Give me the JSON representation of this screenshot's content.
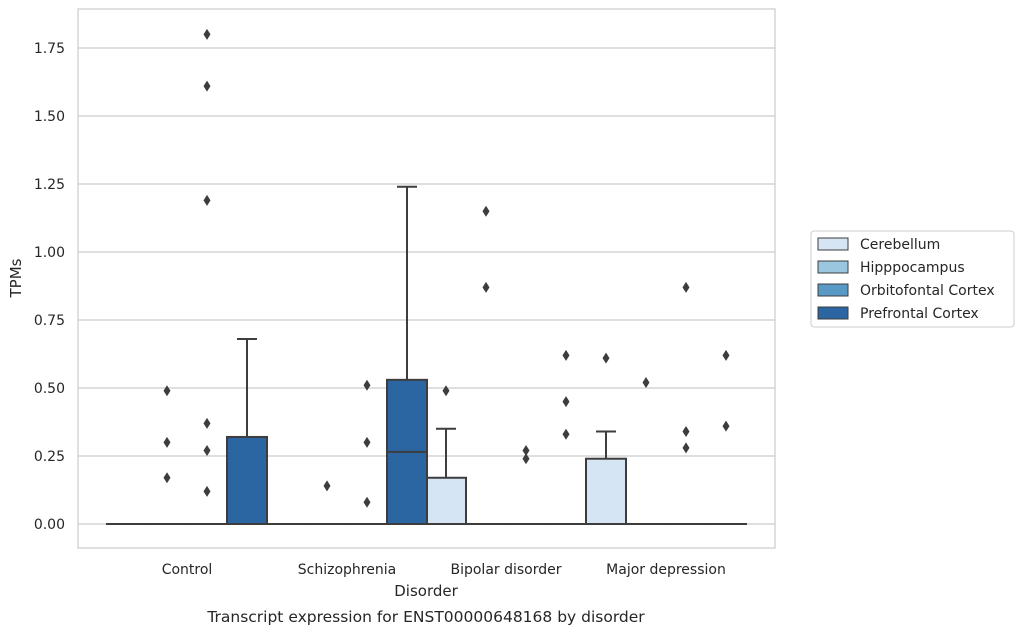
{
  "caption": "Transcript expression for ENST00000648168 by disorder",
  "chart_data": {
    "type": "box",
    "xlabel": "Disorder",
    "ylabel": "TPMs",
    "ylim": [
      -0.09,
      1.89
    ],
    "yticks": [
      "0.00",
      "0.25",
      "0.50",
      "0.75",
      "1.00",
      "1.25",
      "1.50",
      "1.75"
    ],
    "grid": "horizontal",
    "legend_placement": "right",
    "categories": [
      "Control",
      "Schizophrenia",
      "Bipolar disorder",
      "Major depression"
    ],
    "series": [
      {
        "name": "Cerebellum",
        "color": "#d6e5f3",
        "boxes": [
          {
            "q1": 0,
            "median": 0,
            "q3": 0,
            "whisker_low": 0,
            "whisker_high": 0,
            "outliers": []
          },
          {
            "q1": 0,
            "median": 0,
            "q3": 0,
            "whisker_low": 0,
            "whisker_high": 0,
            "outliers": []
          },
          {
            "q1": 0,
            "median": 0,
            "q3": 0.17,
            "whisker_low": 0,
            "whisker_high": 0.35,
            "outliers": [
              0.49
            ]
          },
          {
            "q1": 0,
            "median": 0,
            "q3": 0.24,
            "whisker_low": 0,
            "whisker_high": 0.34,
            "outliers": [
              0.61
            ]
          }
        ]
      },
      {
        "name": "Hipppocampus",
        "color": "#9bc6df",
        "boxes": [
          {
            "q1": 0,
            "median": 0,
            "q3": 0,
            "whisker_low": 0,
            "whisker_high": 0,
            "outliers": [
              0.17,
              0.3,
              0.49
            ]
          },
          {
            "q1": 0,
            "median": 0,
            "q3": 0,
            "whisker_low": 0,
            "whisker_high": 0,
            "outliers": [
              0.14
            ]
          },
          {
            "q1": 0,
            "median": 0,
            "q3": 0,
            "whisker_low": 0,
            "whisker_high": 0,
            "outliers": [
              0.87,
              1.15
            ]
          },
          {
            "q1": 0,
            "median": 0,
            "q3": 0,
            "whisker_low": 0,
            "whisker_high": 0,
            "outliers": [
              0.52
            ]
          }
        ]
      },
      {
        "name": "Orbitofontal Cortex",
        "color": "#5899c6",
        "boxes": [
          {
            "q1": 0,
            "median": 0,
            "q3": 0,
            "whisker_low": 0,
            "whisker_high": 0,
            "outliers": [
              0.12,
              0.27,
              0.37,
              1.19,
              1.61,
              1.8
            ]
          },
          {
            "q1": 0,
            "median": 0,
            "q3": 0,
            "whisker_low": 0,
            "whisker_high": 0,
            "outliers": [
              0.08,
              0.3,
              0.51
            ]
          },
          {
            "q1": 0,
            "median": 0,
            "q3": 0,
            "whisker_low": 0,
            "whisker_high": 0,
            "outliers": [
              0.24,
              0.27
            ]
          },
          {
            "q1": 0,
            "median": 0,
            "q3": 0,
            "whisker_low": 0,
            "whisker_high": 0,
            "outliers": [
              0.28,
              0.34,
              0.87
            ]
          }
        ]
      },
      {
        "name": "Prefrontal Cortex",
        "color": "#2b66a3",
        "boxes": [
          {
            "q1": 0,
            "median": 0,
            "q3": 0.32,
            "whisker_low": 0,
            "whisker_high": 0.68,
            "outliers": []
          },
          {
            "q1": 0,
            "median": 0.265,
            "q3": 0.53,
            "whisker_low": 0,
            "whisker_high": 1.24,
            "outliers": []
          },
          {
            "q1": 0,
            "median": 0,
            "q3": 0,
            "whisker_low": 0,
            "whisker_high": 0,
            "outliers": [
              0.33,
              0.45,
              0.62
            ]
          },
          {
            "q1": 0,
            "median": 0,
            "q3": 0,
            "whisker_low": 0,
            "whisker_high": 0,
            "outliers": [
              0.36,
              0.62
            ]
          }
        ]
      }
    ]
  }
}
